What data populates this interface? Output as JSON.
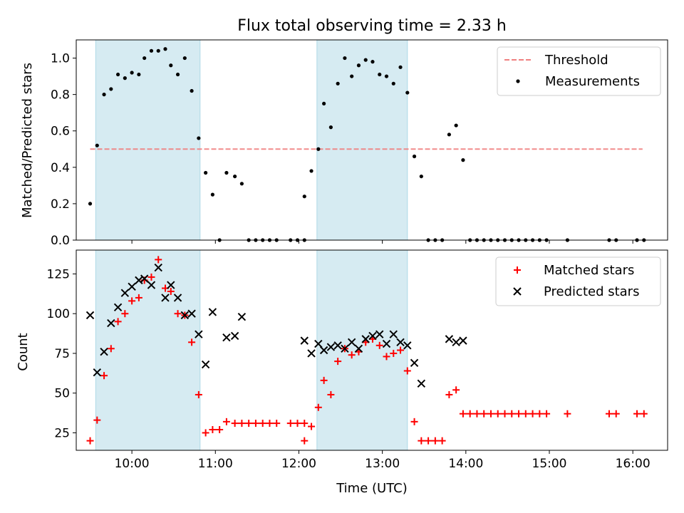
{
  "chart_data": [
    {
      "type": "scatter",
      "title": "Flux total observing time = 2.33 h",
      "xlabel": "",
      "ylabel": "Matched/Predicted stars",
      "xlim": [
        "09:20",
        "16:25"
      ],
      "ylim": [
        0,
        1.1
      ],
      "yticks": [
        "0.0",
        "0.2",
        "0.4",
        "0.6",
        "0.8",
        "1.0"
      ],
      "shaded_intervals": [
        [
          "09:34",
          "10:49"
        ],
        [
          "12:13",
          "13:18"
        ]
      ],
      "threshold": {
        "name": "Threshold",
        "value": 0.5,
        "x_start": "09:30",
        "x_end": "16:07",
        "color": "#f08080"
      },
      "legend": {
        "position": "top-right",
        "entries": [
          "Threshold",
          "Measurements"
        ]
      },
      "series": [
        {
          "name": "Measurements",
          "color": "#000000",
          "points": [
            [
              "09:30",
              0.2
            ],
            [
              "09:35",
              0.52
            ],
            [
              "09:40",
              0.8
            ],
            [
              "09:45",
              0.83
            ],
            [
              "09:50",
              0.91
            ],
            [
              "09:55",
              0.89
            ],
            [
              "10:00",
              0.92
            ],
            [
              "10:05",
              0.91
            ],
            [
              "10:09",
              1.0
            ],
            [
              "10:14",
              1.04
            ],
            [
              "10:19",
              1.04
            ],
            [
              "10:24",
              1.05
            ],
            [
              "10:28",
              0.96
            ],
            [
              "10:33",
              0.91
            ],
            [
              "10:38",
              1.0
            ],
            [
              "10:43",
              0.82
            ],
            [
              "10:48",
              0.56
            ],
            [
              "10:53",
              0.37
            ],
            [
              "10:58",
              0.25
            ],
            [
              "11:03",
              0.0
            ],
            [
              "11:08",
              0.37
            ],
            [
              "11:14",
              0.35
            ],
            [
              "11:19",
              0.31
            ],
            [
              "11:24",
              0.0
            ],
            [
              "11:29",
              0.0
            ],
            [
              "11:34",
              0.0
            ],
            [
              "11:39",
              0.0
            ],
            [
              "11:44",
              0.0
            ],
            [
              "11:54",
              0.0
            ],
            [
              "11:59",
              0.0
            ],
            [
              "12:04",
              0.0
            ],
            [
              "12:04",
              0.24
            ],
            [
              "12:09",
              0.38
            ],
            [
              "12:14",
              0.5
            ],
            [
              "12:18",
              0.75
            ],
            [
              "12:23",
              0.62
            ],
            [
              "12:28",
              0.86
            ],
            [
              "12:33",
              1.0
            ],
            [
              "12:38",
              0.9
            ],
            [
              "12:43",
              0.96
            ],
            [
              "12:48",
              0.99
            ],
            [
              "12:53",
              0.98
            ],
            [
              "12:58",
              0.91
            ],
            [
              "13:03",
              0.9
            ],
            [
              "13:08",
              0.86
            ],
            [
              "13:13",
              0.95
            ],
            [
              "13:18",
              0.81
            ],
            [
              "13:23",
              0.46
            ],
            [
              "13:28",
              0.35
            ],
            [
              "13:33",
              0.0
            ],
            [
              "13:38",
              0.0
            ],
            [
              "13:43",
              0.0
            ],
            [
              "13:48",
              0.58
            ],
            [
              "13:53",
              0.63
            ],
            [
              "13:58",
              0.44
            ],
            [
              "14:03",
              0.0
            ],
            [
              "14:08",
              0.0
            ],
            [
              "14:13",
              0.0
            ],
            [
              "14:18",
              0.0
            ],
            [
              "14:23",
              0.0
            ],
            [
              "14:28",
              0.0
            ],
            [
              "14:33",
              0.0
            ],
            [
              "14:38",
              0.0
            ],
            [
              "14:43",
              0.0
            ],
            [
              "14:48",
              0.0
            ],
            [
              "14:53",
              0.0
            ],
            [
              "14:58",
              0.0
            ],
            [
              "15:13",
              0.0
            ],
            [
              "15:43",
              0.0
            ],
            [
              "15:48",
              0.0
            ],
            [
              "16:03",
              0.0
            ],
            [
              "16:08",
              0.0
            ]
          ]
        }
      ]
    },
    {
      "type": "scatter",
      "title": "",
      "xlabel": "Time (UTC)",
      "ylabel": "Count",
      "xlim": [
        "09:20",
        "16:25"
      ],
      "ylim": [
        14,
        140
      ],
      "xticks": [
        "10:00",
        "11:00",
        "12:00",
        "13:00",
        "14:00",
        "15:00",
        "16:00"
      ],
      "yticks": [
        "25",
        "50",
        "75",
        "100",
        "125"
      ],
      "shaded_intervals": [
        [
          "09:34",
          "10:49"
        ],
        [
          "12:13",
          "13:18"
        ]
      ],
      "legend": {
        "position": "top-right",
        "entries": [
          "Matched stars",
          "Predicted stars"
        ]
      },
      "series": [
        {
          "name": "Matched stars",
          "color": "#ff0000",
          "marker": "+",
          "points": [
            [
              "09:30",
              20
            ],
            [
              "09:35",
              33
            ],
            [
              "09:40",
              61
            ],
            [
              "09:45",
              78
            ],
            [
              "09:50",
              95
            ],
            [
              "09:55",
              100
            ],
            [
              "10:00",
              108
            ],
            [
              "10:05",
              110
            ],
            [
              "10:09",
              121
            ],
            [
              "10:14",
              123
            ],
            [
              "10:19",
              134
            ],
            [
              "10:24",
              116
            ],
            [
              "10:28",
              114
            ],
            [
              "10:33",
              100
            ],
            [
              "10:38",
              99
            ],
            [
              "10:43",
              82
            ],
            [
              "10:48",
              49
            ],
            [
              "10:53",
              25
            ],
            [
              "10:58",
              27
            ],
            [
              "11:03",
              27
            ],
            [
              "11:08",
              32
            ],
            [
              "11:14",
              31
            ],
            [
              "11:19",
              31
            ],
            [
              "11:24",
              31
            ],
            [
              "11:29",
              31
            ],
            [
              "11:34",
              31
            ],
            [
              "11:39",
              31
            ],
            [
              "11:44",
              31
            ],
            [
              "11:54",
              31
            ],
            [
              "11:59",
              31
            ],
            [
              "12:04",
              31
            ],
            [
              "12:04",
              20
            ],
            [
              "12:09",
              29
            ],
            [
              "12:14",
              41
            ],
            [
              "12:18",
              58
            ],
            [
              "12:23",
              49
            ],
            [
              "12:28",
              70
            ],
            [
              "12:33",
              78
            ],
            [
              "12:38",
              74
            ],
            [
              "12:43",
              76
            ],
            [
              "12:48",
              82
            ],
            [
              "12:53",
              84
            ],
            [
              "12:58",
              80
            ],
            [
              "13:03",
              73
            ],
            [
              "13:08",
              75
            ],
            [
              "13:13",
              77
            ],
            [
              "13:18",
              64
            ],
            [
              "13:23",
              32
            ],
            [
              "13:28",
              20
            ],
            [
              "13:33",
              20
            ],
            [
              "13:38",
              20
            ],
            [
              "13:43",
              20
            ],
            [
              "13:48",
              49
            ],
            [
              "13:53",
              52
            ],
            [
              "13:58",
              37
            ],
            [
              "14:03",
              37
            ],
            [
              "14:08",
              37
            ],
            [
              "14:13",
              37
            ],
            [
              "14:18",
              37
            ],
            [
              "14:23",
              37
            ],
            [
              "14:28",
              37
            ],
            [
              "14:33",
              37
            ],
            [
              "14:38",
              37
            ],
            [
              "14:43",
              37
            ],
            [
              "14:48",
              37
            ],
            [
              "14:53",
              37
            ],
            [
              "14:58",
              37
            ],
            [
              "15:13",
              37
            ],
            [
              "15:43",
              37
            ],
            [
              "15:48",
              37
            ],
            [
              "16:03",
              37
            ],
            [
              "16:08",
              37
            ]
          ]
        },
        {
          "name": "Predicted stars",
          "color": "#000000",
          "marker": "x",
          "points": [
            [
              "09:30",
              99
            ],
            [
              "09:35",
              63
            ],
            [
              "09:40",
              76
            ],
            [
              "09:45",
              94
            ],
            [
              "09:50",
              104
            ],
            [
              "09:55",
              113
            ],
            [
              "10:00",
              117
            ],
            [
              "10:05",
              121
            ],
            [
              "10:09",
              122
            ],
            [
              "10:14",
              118
            ],
            [
              "10:19",
              129
            ],
            [
              "10:24",
              110
            ],
            [
              "10:28",
              118
            ],
            [
              "10:33",
              110
            ],
            [
              "10:38",
              99
            ],
            [
              "10:43",
              100
            ],
            [
              "10:48",
              87
            ],
            [
              "10:53",
              68
            ],
            [
              "10:58",
              101
            ],
            [
              "11:08",
              85
            ],
            [
              "11:14",
              86
            ],
            [
              "11:19",
              98
            ],
            [
              "12:04",
              83
            ],
            [
              "12:09",
              75
            ],
            [
              "12:14",
              81
            ],
            [
              "12:18",
              77
            ],
            [
              "12:23",
              79
            ],
            [
              "12:28",
              80
            ],
            [
              "12:33",
              78
            ],
            [
              "12:38",
              82
            ],
            [
              "12:43",
              78
            ],
            [
              "12:48",
              84
            ],
            [
              "12:53",
              86
            ],
            [
              "12:58",
              87
            ],
            [
              "13:03",
              81
            ],
            [
              "13:08",
              87
            ],
            [
              "13:13",
              82
            ],
            [
              "13:18",
              80
            ],
            [
              "13:23",
              69
            ],
            [
              "13:28",
              56
            ],
            [
              "13:48",
              84
            ],
            [
              "13:53",
              82
            ],
            [
              "13:58",
              83
            ]
          ]
        }
      ]
    }
  ]
}
